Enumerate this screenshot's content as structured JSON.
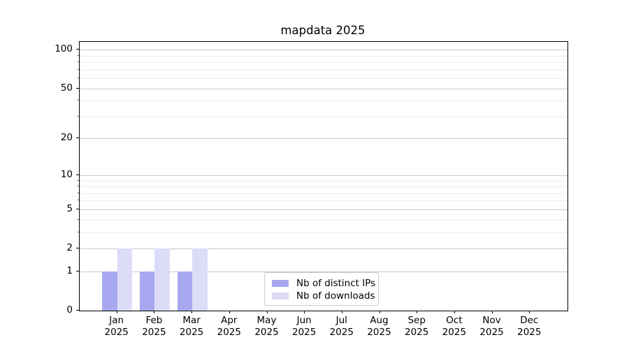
{
  "chart_data": {
    "type": "bar",
    "title": "mapdata 2025",
    "categories": [
      "Jan",
      "Feb",
      "Mar",
      "Apr",
      "May",
      "Jun",
      "Jul",
      "Aug",
      "Sep",
      "Oct",
      "Nov",
      "Dec"
    ],
    "category_year": "2025",
    "series": [
      {
        "name": "Nb of distinct IPs",
        "color": "#a8a8f0",
        "values": [
          1,
          1,
          1,
          0,
          0,
          0,
          0,
          0,
          0,
          0,
          0,
          0
        ]
      },
      {
        "name": "Nb of downloads",
        "color": "#dcdcf8",
        "values": [
          2,
          2,
          2,
          0,
          0,
          0,
          0,
          0,
          0,
          0,
          0,
          0
        ]
      }
    ],
    "yticks_major": [
      0,
      1,
      2,
      5,
      10,
      20,
      50,
      100
    ],
    "yticks_minor": [
      3,
      4,
      6,
      7,
      8,
      9,
      30,
      40,
      60,
      70,
      80,
      90
    ],
    "scale": "log10(1+v)",
    "ylim": [
      0,
      115
    ],
    "xlabel": "",
    "ylabel": "",
    "grid": true,
    "legend_position": "lower center"
  }
}
